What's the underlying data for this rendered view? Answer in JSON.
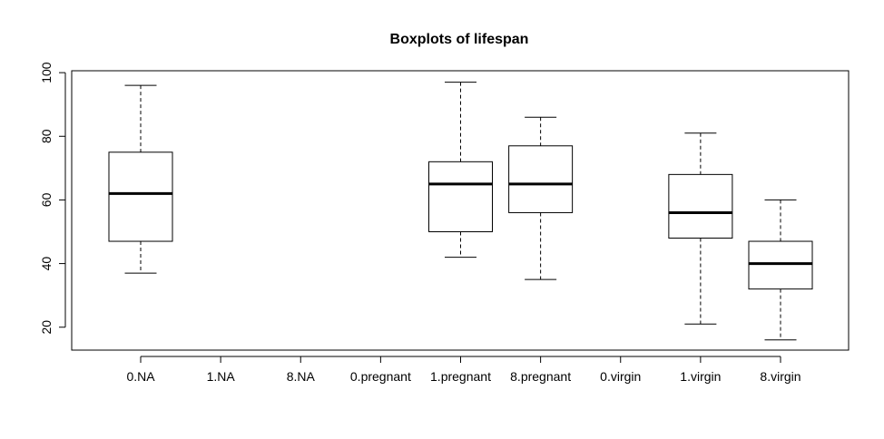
{
  "chart_data": {
    "type": "boxplot",
    "title": "Boxplots of lifespan",
    "xlabel": "",
    "ylabel": "",
    "ylim": [
      12.8,
      100.6
    ],
    "y_ticks": [
      20,
      40,
      60,
      80,
      100
    ],
    "categories": [
      "0.NA",
      "1.NA",
      "8.NA",
      "0.pregnant",
      "1.pregnant",
      "8.pregnant",
      "0.virgin",
      "1.virgin",
      "8.virgin"
    ],
    "boxes": [
      {
        "category": "0.NA",
        "min": 37,
        "q1": 47,
        "median": 62,
        "q3": 75,
        "max": 96
      },
      {
        "category": "1.NA",
        "empty": true
      },
      {
        "category": "8.NA",
        "empty": true
      },
      {
        "category": "0.pregnant",
        "empty": true
      },
      {
        "category": "1.pregnant",
        "min": 42,
        "q1": 50,
        "median": 65,
        "q3": 72,
        "max": 97
      },
      {
        "category": "8.pregnant",
        "min": 35,
        "q1": 56,
        "median": 65,
        "q3": 77,
        "max": 86
      },
      {
        "category": "0.virgin",
        "empty": true
      },
      {
        "category": "1.virgin",
        "min": 21,
        "q1": 48,
        "median": 56,
        "q3": 68,
        "max": 81
      },
      {
        "category": "8.virgin",
        "min": 16,
        "q1": 32,
        "median": 40,
        "q3": 47,
        "max": 60
      }
    ],
    "grid": false,
    "legend": "none"
  }
}
